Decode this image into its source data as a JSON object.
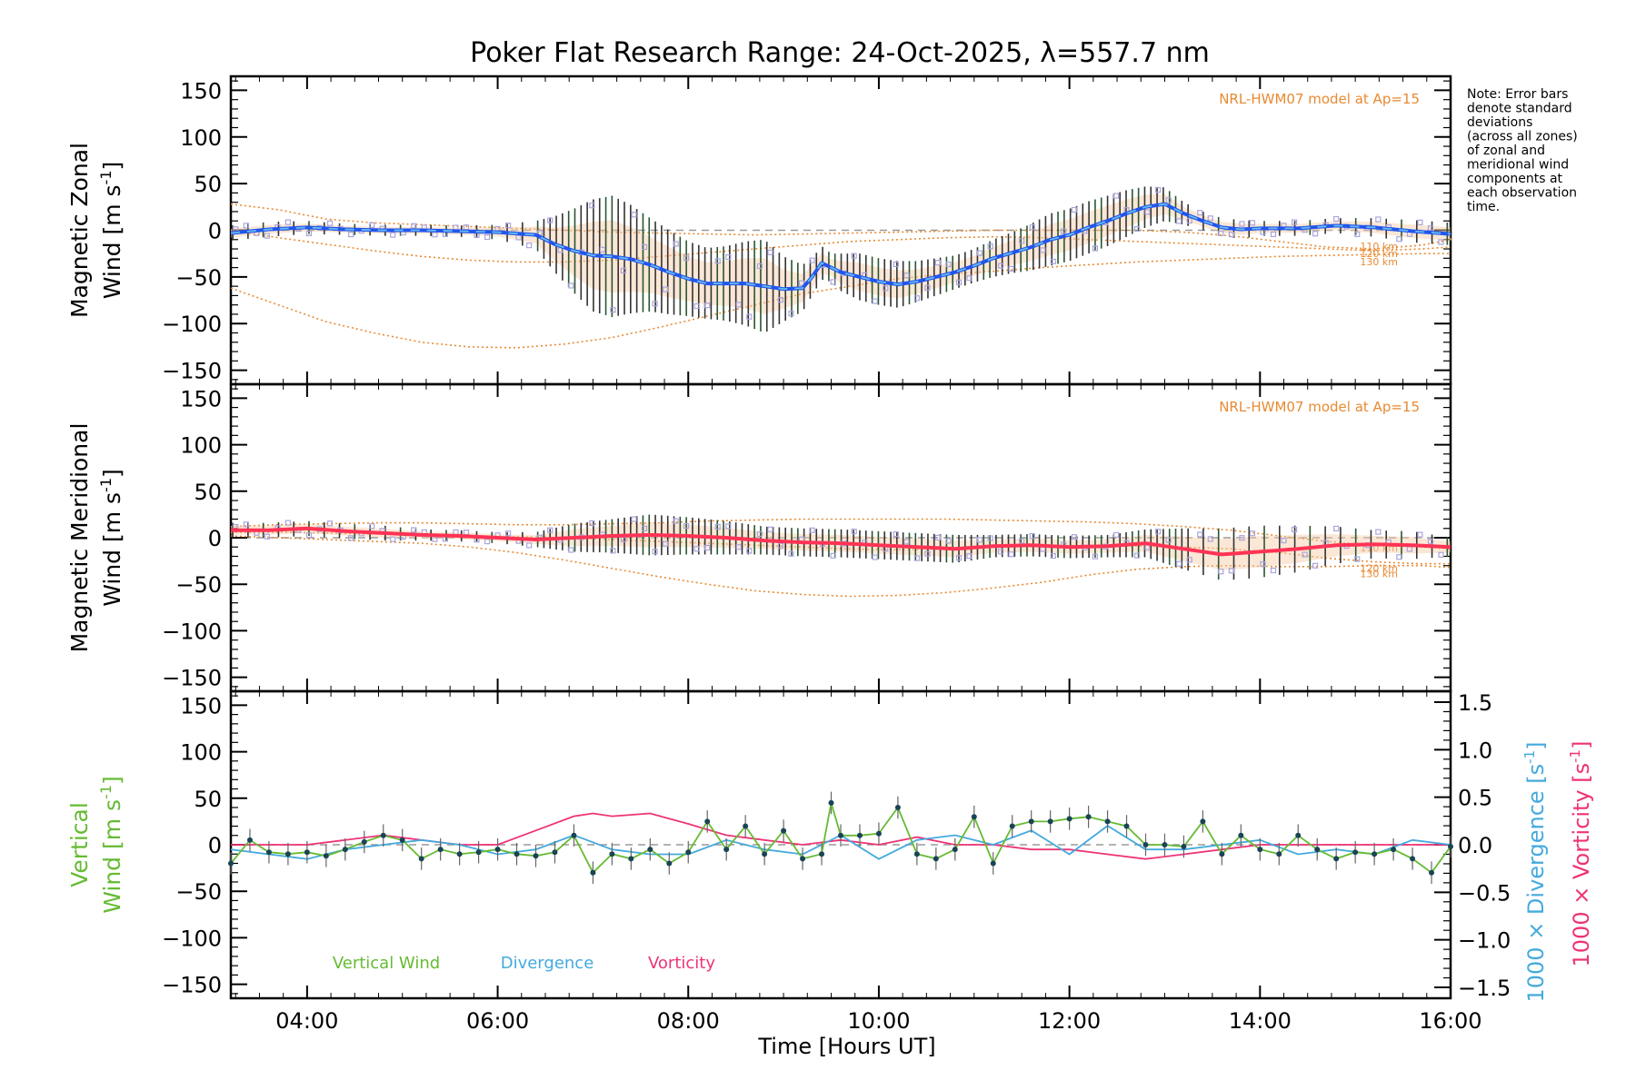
{
  "chart_data": {
    "type": "line",
    "title": "Poker Flat Research Range: 24-Oct-2025, λ=557.7 nm",
    "note": [
      "Note: Error bars",
      "denote standard",
      "deviations",
      "(across all zones)",
      "of zonal and",
      "meridional wind",
      "components at",
      "each observation",
      "time."
    ],
    "x_axis": {
      "label": "Time [Hours UT]",
      "range_hours": [
        3.2,
        16.0
      ],
      "tick_hours": [
        4,
        6,
        8,
        10,
        12,
        14,
        16
      ],
      "tick_labels": [
        "04:00",
        "06:00",
        "08:00",
        "10:00",
        "12:00",
        "14:00",
        "16:00"
      ]
    },
    "y_ticks": [
      150,
      100,
      50,
      0,
      -50,
      -100,
      -150
    ],
    "y_tick_labels": [
      "150",
      "100",
      "50",
      "0",
      "−50",
      "−100",
      "−150"
    ],
    "ylim": [
      -165,
      165
    ],
    "model_label": "NRL-HWM07 model at Ap=15",
    "model_km_labels": [
      "110 km",
      "120 km",
      "130 km"
    ],
    "panels": [
      {
        "name": "zonal",
        "ylabel_line1": "Magnetic Zonal",
        "ylabel_line2": "Wind [m s",
        "ylabel_sup": "-1",
        "ylabel_close": "]",
        "series_color": "#2255ee",
        "x": [
          3.2,
          3.6,
          4.0,
          4.4,
          4.8,
          5.2,
          5.6,
          6.0,
          6.4,
          6.6,
          6.8,
          7.0,
          7.2,
          7.4,
          7.6,
          7.8,
          8.0,
          8.2,
          8.4,
          8.6,
          8.8,
          9.0,
          9.2,
          9.3,
          9.4,
          9.5,
          9.6,
          9.8,
          10.0,
          10.2,
          10.4,
          10.6,
          10.8,
          11.0,
          11.2,
          11.4,
          11.6,
          11.8,
          12.0,
          12.2,
          12.4,
          12.6,
          12.8,
          13.0,
          13.2,
          13.4,
          13.6,
          13.8,
          14.0,
          14.4,
          14.8,
          15.2,
          15.6,
          16.0
        ],
        "y": [
          -3,
          1,
          3,
          1,
          0,
          0,
          -1,
          -2,
          -5,
          -15,
          -22,
          -27,
          -28,
          -31,
          -37,
          -45,
          -52,
          -57,
          -57,
          -57,
          -60,
          -63,
          -62,
          -50,
          -35,
          -40,
          -45,
          -50,
          -55,
          -58,
          -55,
          -50,
          -45,
          -38,
          -30,
          -24,
          -18,
          -10,
          -5,
          3,
          10,
          18,
          25,
          28,
          18,
          10,
          3,
          1,
          2,
          2,
          5,
          3,
          -1,
          -4
        ],
        "err": [
          8,
          8,
          7,
          6,
          6,
          6,
          6,
          8,
          15,
          30,
          45,
          60,
          65,
          58,
          50,
          45,
          40,
          38,
          40,
          45,
          50,
          35,
          25,
          20,
          18,
          15,
          20,
          25,
          25,
          25,
          22,
          20,
          18,
          18,
          20,
          22,
          25,
          28,
          28,
          28,
          27,
          25,
          22,
          18,
          12,
          10,
          10,
          10,
          8,
          8,
          8,
          10,
          12,
          12
        ],
        "model": [
          {
            "y": [
              28,
              22,
              12,
              8,
              6,
              4,
              2,
              0,
              -2,
              -3,
              -4,
              -5,
              -4,
              -3,
              -2,
              -1,
              0,
              0,
              0,
              0,
              -2,
              -6,
              -12,
              -18,
              -20,
              -16,
              -10,
              -8
            ]
          },
          {
            "y": [
              0,
              -8,
              -15,
              -22,
              -28,
              -32,
              -34,
              -34,
              -32,
              -28,
              -24,
              -20,
              -16,
              -12,
              -10,
              -8,
              -7,
              -8,
              -10,
              -12,
              -14,
              -16,
              -18,
              -20,
              -22,
              -20,
              -18,
              -18
            ]
          },
          {
            "y": [
              -62,
              -80,
              -98,
              -110,
              -120,
              -125,
              -126,
              -122,
              -115,
              -104,
              -92,
              -80,
              -68,
              -60,
              -52,
              -47,
              -44,
              -40,
              -37,
              -34,
              -32,
              -30,
              -28,
              -27,
              -26,
              -25,
              -25,
              -24
            ]
          }
        ],
        "model_x": [
          3.2,
          3.7,
          4.2,
          4.7,
          5.2,
          5.7,
          6.2,
          6.7,
          7.2,
          7.7,
          8.2,
          8.7,
          9.2,
          9.7,
          10.2,
          10.7,
          11.2,
          11.7,
          12.2,
          12.7,
          13.2,
          13.7,
          14.2,
          14.7,
          15.2,
          15.7,
          16.0,
          16.0
        ]
      },
      {
        "name": "meridional",
        "ylabel_line1": "Magnetic Meridional",
        "ylabel_line2": "Wind [m s",
        "ylabel_sup": "-1",
        "ylabel_close": "]",
        "series_color": "#ff3355",
        "x": [
          3.2,
          3.6,
          4.0,
          4.4,
          4.8,
          5.2,
          5.6,
          6.0,
          6.4,
          6.8,
          7.2,
          7.6,
          8.0,
          8.4,
          8.8,
          9.2,
          9.6,
          10.0,
          10.4,
          10.8,
          11.2,
          11.6,
          12.0,
          12.4,
          12.8,
          13.2,
          13.6,
          14.0,
          14.4,
          14.8,
          15.2,
          15.6,
          16.0
        ],
        "y": [
          8,
          8,
          10,
          7,
          5,
          3,
          2,
          0,
          -2,
          0,
          2,
          3,
          2,
          0,
          -3,
          -5,
          -6,
          -8,
          -10,
          -12,
          -9,
          -8,
          -10,
          -9,
          -6,
          -12,
          -18,
          -15,
          -12,
          -8,
          -7,
          -8,
          -10
        ],
        "err": [
          8,
          8,
          8,
          8,
          8,
          6,
          6,
          6,
          8,
          15,
          18,
          22,
          20,
          18,
          15,
          15,
          15,
          15,
          15,
          15,
          12,
          12,
          12,
          12,
          15,
          22,
          28,
          28,
          25,
          20,
          15,
          15,
          10
        ],
        "model": [
          {
            "y": [
              12,
              14,
              15,
              16,
              16,
              15,
              14,
              14,
              15,
              16,
              18,
              19,
              20,
              20,
              20,
              20,
              19,
              18,
              17,
              15,
              12,
              8,
              2,
              -4,
              -8,
              -10,
              -12,
              -12
            ]
          },
          {
            "y": [
              6,
              6,
              5,
              4,
              3,
              2,
              1,
              0,
              -2,
              -4,
              -6,
              -8,
              -10,
              -12,
              -13,
              -12,
              -10,
              -9,
              -8,
              -9,
              -10,
              -12,
              -16,
              -22,
              -26,
              -28,
              -28,
              -28
            ]
          },
          {
            "y": [
              2,
              0,
              -2,
              -4,
              -6,
              -10,
              -16,
              -24,
              -33,
              -42,
              -50,
              -57,
              -61,
              -63,
              -62,
              -59,
              -54,
              -48,
              -40,
              -34,
              -31,
              -30,
              -31,
              -31,
              -30,
              -30,
              -32,
              -34
            ]
          }
        ],
        "model_x": [
          3.2,
          3.7,
          4.2,
          4.7,
          5.2,
          5.7,
          6.2,
          6.7,
          7.2,
          7.7,
          8.2,
          8.7,
          9.2,
          9.7,
          10.2,
          10.7,
          11.2,
          11.7,
          12.2,
          12.7,
          13.2,
          13.7,
          14.2,
          14.7,
          15.2,
          15.7,
          16.0,
          16.0
        ]
      },
      {
        "name": "vertical",
        "ylabel_line1": "Vertical",
        "ylabel_line2": "Wind [m s",
        "ylabel_sup": "-1",
        "ylabel_close": "]",
        "ylabel_color": "#66bb33",
        "right_axis": {
          "range": [
            -1.5,
            1.5
          ],
          "ticks": [
            1.5,
            1.0,
            0.5,
            0.0,
            -0.5,
            -1.0,
            -1.5
          ],
          "tick_labels": [
            "1.5",
            "1.0",
            "0.5",
            "0.0",
            "−0.5",
            "−1.0",
            "−1.5"
          ],
          "label_divergence": "1000 × Divergence [s",
          "label_vorticity": "1000 × Vorticity [s",
          "label_sup": "-1",
          "label_close": "]"
        },
        "legend": [
          "Vertical Wind",
          "Divergence",
          "Vorticity"
        ],
        "colors": {
          "vertical": "#66bb33",
          "divergence": "#44aadd",
          "vorticity": "#ee3377",
          "points": "#1a4455"
        },
        "vertical_x": [
          3.2,
          3.4,
          3.6,
          3.8,
          4.0,
          4.2,
          4.4,
          4.6,
          4.8,
          5.0,
          5.2,
          5.4,
          5.6,
          5.8,
          6.0,
          6.2,
          6.4,
          6.6,
          6.8,
          7.0,
          7.2,
          7.4,
          7.6,
          7.8,
          8.0,
          8.2,
          8.4,
          8.6,
          8.8,
          9.0,
          9.2,
          9.4,
          9.5,
          9.6,
          9.8,
          10.0,
          10.2,
          10.4,
          10.6,
          10.8,
          11.0,
          11.2,
          11.4,
          11.6,
          11.8,
          12.0,
          12.2,
          12.4,
          12.6,
          12.8,
          13.0,
          13.2,
          13.4,
          13.6,
          13.8,
          14.0,
          14.2,
          14.4,
          14.6,
          14.8,
          15.0,
          15.2,
          15.4,
          15.6,
          15.8,
          16.0
        ],
        "vertical_y": [
          -20,
          5,
          -8,
          -10,
          -8,
          -12,
          -5,
          3,
          10,
          5,
          -15,
          -5,
          -10,
          -8,
          -5,
          -10,
          -12,
          -8,
          10,
          -30,
          -10,
          -15,
          -5,
          -20,
          -8,
          25,
          -5,
          20,
          -10,
          15,
          -15,
          -10,
          45,
          10,
          10,
          12,
          40,
          -10,
          -15,
          -5,
          30,
          -20,
          20,
          25,
          25,
          28,
          30,
          25,
          20,
          0,
          0,
          -2,
          25,
          -10,
          10,
          -5,
          -10,
          10,
          -5,
          -15,
          -8,
          -10,
          -5,
          -15,
          -30,
          -2
        ],
        "divergence_x": [
          3.2,
          3.6,
          4.0,
          4.4,
          4.8,
          5.2,
          5.6,
          6.0,
          6.4,
          6.8,
          7.2,
          7.6,
          8.0,
          8.4,
          8.8,
          9.2,
          9.6,
          10.0,
          10.4,
          10.8,
          11.2,
          11.6,
          12.0,
          12.4,
          12.8,
          13.2,
          13.6,
          14.0,
          14.4,
          14.8,
          15.2,
          15.6,
          16.0
        ],
        "divergence_y": [
          -0.05,
          -0.1,
          -0.15,
          -0.05,
          0.0,
          0.05,
          0.0,
          -0.1,
          -0.05,
          0.1,
          -0.05,
          -0.1,
          -0.1,
          0.05,
          -0.05,
          -0.1,
          0.1,
          -0.15,
          0.05,
          0.1,
          0.0,
          0.15,
          -0.1,
          0.2,
          -0.05,
          -0.05,
          0.0,
          0.05,
          -0.1,
          -0.05,
          -0.1,
          0.05,
          0.0
        ],
        "vorticity_x": [
          3.2,
          3.6,
          4.0,
          4.4,
          4.8,
          5.2,
          5.6,
          6.0,
          6.4,
          6.8,
          7.0,
          7.2,
          7.6,
          8.0,
          8.4,
          8.8,
          9.2,
          9.6,
          10.0,
          10.4,
          10.8,
          11.2,
          11.6,
          12.0,
          12.4,
          12.8,
          13.2,
          13.6,
          14.0,
          14.4,
          14.8,
          15.2,
          15.6,
          16.0
        ],
        "vorticity_y": [
          0.0,
          0.0,
          0.0,
          0.05,
          0.1,
          0.05,
          0.0,
          0.0,
          0.15,
          0.3,
          0.33,
          0.3,
          0.33,
          0.22,
          0.1,
          0.05,
          0.0,
          0.05,
          0.0,
          0.08,
          0.0,
          0.0,
          -0.05,
          -0.05,
          -0.1,
          -0.15,
          -0.1,
          -0.05,
          0.0,
          0.0,
          0.0,
          0.0,
          0.0,
          0.0
        ]
      }
    ]
  }
}
